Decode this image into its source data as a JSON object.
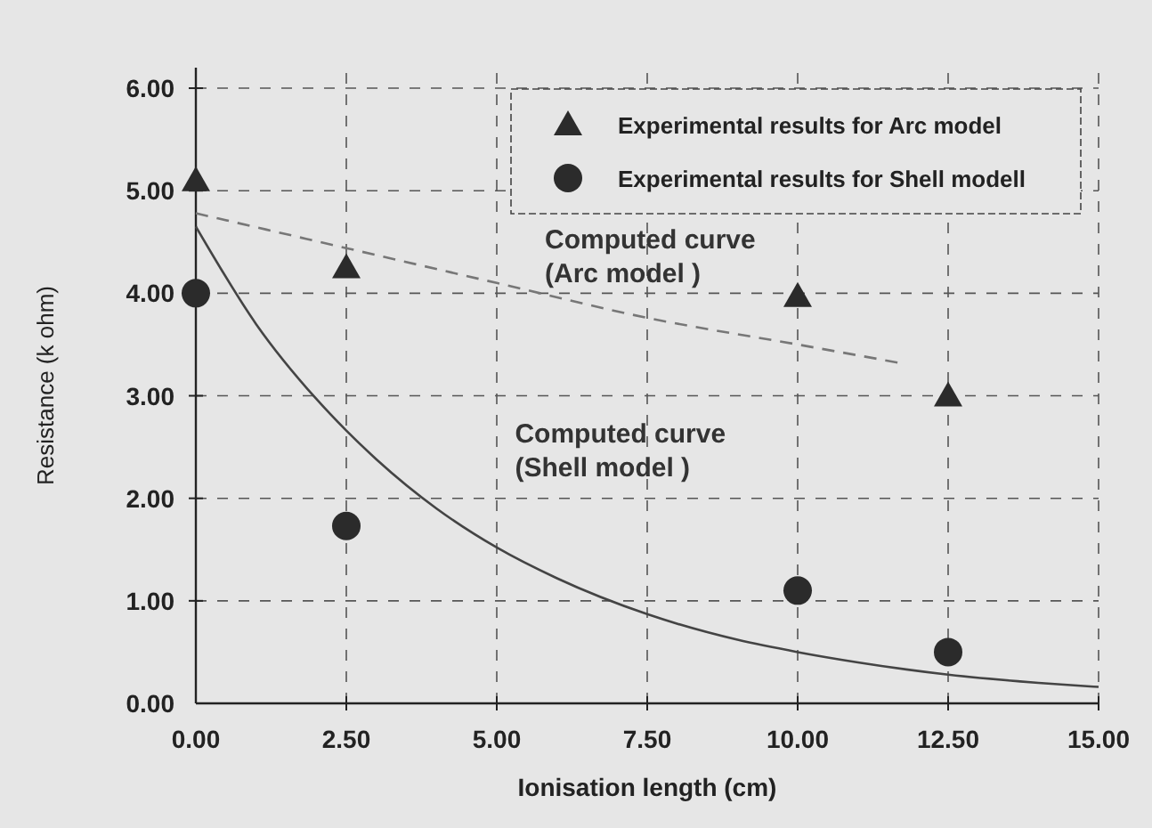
{
  "chart_data": {
    "type": "scatter",
    "xlabel": "Ionisation length (cm)",
    "ylabel": "Resistance (k ohm)",
    "xlim": [
      0,
      15
    ],
    "ylim": [
      0,
      6.2
    ],
    "xticks": [
      {
        "value": 0,
        "label": "0.00"
      },
      {
        "value": 2.5,
        "label": "2.50"
      },
      {
        "value": 5,
        "label": "5.00"
      },
      {
        "value": 7.5,
        "label": "7.50"
      },
      {
        "value": 10,
        "label": "10.00"
      },
      {
        "value": 12.5,
        "label": "12.50"
      },
      {
        "value": 15,
        "label": "15.00"
      }
    ],
    "yticks": [
      {
        "value": 0,
        "label": "0.00"
      },
      {
        "value": 1,
        "label": "1.00"
      },
      {
        "value": 2,
        "label": "2.00"
      },
      {
        "value": 3,
        "label": "3.00"
      },
      {
        "value": 4,
        "label": "4.00"
      },
      {
        "value": 5,
        "label": "5.00"
      },
      {
        "value": 6,
        "label": "6.00"
      }
    ],
    "grid": true,
    "legend": "top right",
    "series": [
      {
        "name": "Experimental results for Arc model",
        "marker": "triangle",
        "color": "#2b2b2b",
        "x": [
          0,
          2.5,
          10,
          12.5
        ],
        "values": [
          5.1,
          4.25,
          3.97,
          3.0
        ]
      },
      {
        "name": "Experimental results for Shell modell",
        "marker": "circle",
        "color": "#2b2b2b",
        "x": [
          0,
          2.5,
          10,
          12.5
        ],
        "values": [
          4.0,
          1.73,
          1.1,
          0.5
        ]
      },
      {
        "type": "line",
        "marker": "none",
        "line_style": "dashed",
        "color": "#777777",
        "x": [
          0,
          2.5,
          5,
          7.5,
          10,
          11.7
        ],
        "values": [
          4.78,
          4.44,
          4.1,
          3.76,
          3.5,
          3.32
        ]
      },
      {
        "type": "line",
        "marker": "none",
        "line_style": "solid",
        "color": "#444444",
        "x": [
          0,
          1,
          2,
          2.5,
          3,
          4,
          5,
          6,
          7.5,
          9,
          10,
          11,
          12.5,
          14,
          15
        ],
        "values": [
          4.65,
          3.7,
          2.97,
          2.66,
          2.38,
          1.9,
          1.52,
          1.22,
          0.87,
          0.62,
          0.5,
          0.4,
          0.28,
          0.2,
          0.16
        ]
      }
    ],
    "annotations": [
      "Computed curve\n(Arc model )",
      "Computed curve\n(Shell model )"
    ]
  }
}
